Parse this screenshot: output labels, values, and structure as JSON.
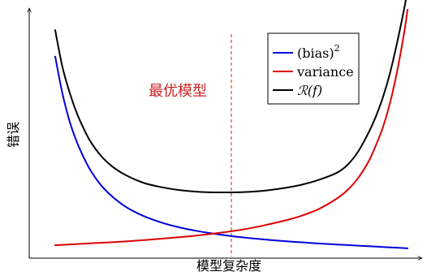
{
  "chart_data": {
    "type": "line",
    "xlabel": "模型复杂度",
    "ylabel": "错误",
    "xlim": [
      0,
      1
    ],
    "ylim": [
      0,
      1
    ],
    "grid": false,
    "legend_position": "top-right",
    "annotation": {
      "text": "最优模型",
      "x": 0.5,
      "color": "#cc2222"
    },
    "series": [
      {
        "name": "(bias)",
        "name_superscript": "2",
        "color": "#0000dd",
        "x": [
          0.0,
          0.02,
          0.04,
          0.06,
          0.08,
          0.1,
          0.13,
          0.16,
          0.2,
          0.25,
          0.3,
          0.35,
          0.4,
          0.45,
          0.5,
          0.55,
          0.6,
          0.65,
          0.7,
          0.75,
          0.8,
          0.85,
          0.9,
          0.95,
          1.0
        ],
        "values": [
          0.805,
          0.655,
          0.54,
          0.455,
          0.388,
          0.332,
          0.27,
          0.225,
          0.18,
          0.142,
          0.115,
          0.095,
          0.08,
          0.068,
          0.058,
          0.05,
          0.043,
          0.037,
          0.032,
          0.027,
          0.023,
          0.019,
          0.015,
          0.011,
          0.007
        ]
      },
      {
        "name": "variance",
        "color": "#dd0000",
        "x": [
          0.0,
          0.1,
          0.2,
          0.3,
          0.4,
          0.5,
          0.55,
          0.6,
          0.65,
          0.7,
          0.75,
          0.8,
          0.83,
          0.86,
          0.89,
          0.91,
          0.93,
          0.95,
          0.97,
          0.99,
          1.0
        ],
        "values": [
          0.02,
          0.028,
          0.036,
          0.047,
          0.06,
          0.078,
          0.09,
          0.105,
          0.122,
          0.143,
          0.172,
          0.215,
          0.25,
          0.3,
          0.37,
          0.435,
          0.51,
          0.61,
          0.74,
          0.9,
          1.0
        ]
      },
      {
        "name": "ℛ(f)",
        "color": "#000000",
        "x": [
          0.0,
          0.02,
          0.04,
          0.06,
          0.08,
          0.1,
          0.13,
          0.16,
          0.2,
          0.25,
          0.3,
          0.35,
          0.4,
          0.45,
          0.5,
          0.55,
          0.6,
          0.65,
          0.7,
          0.75,
          0.8,
          0.83,
          0.86,
          0.89,
          0.91,
          0.93,
          0.95,
          0.97,
          0.99,
          1.0
        ],
        "values": [
          0.915,
          0.765,
          0.66,
          0.575,
          0.508,
          0.452,
          0.392,
          0.35,
          0.312,
          0.28,
          0.262,
          0.25,
          0.243,
          0.24,
          0.24,
          0.242,
          0.248,
          0.258,
          0.272,
          0.293,
          0.322,
          0.355,
          0.41,
          0.49,
          0.555,
          0.635,
          0.735,
          0.86,
          1.0,
          1.08
        ]
      }
    ]
  }
}
